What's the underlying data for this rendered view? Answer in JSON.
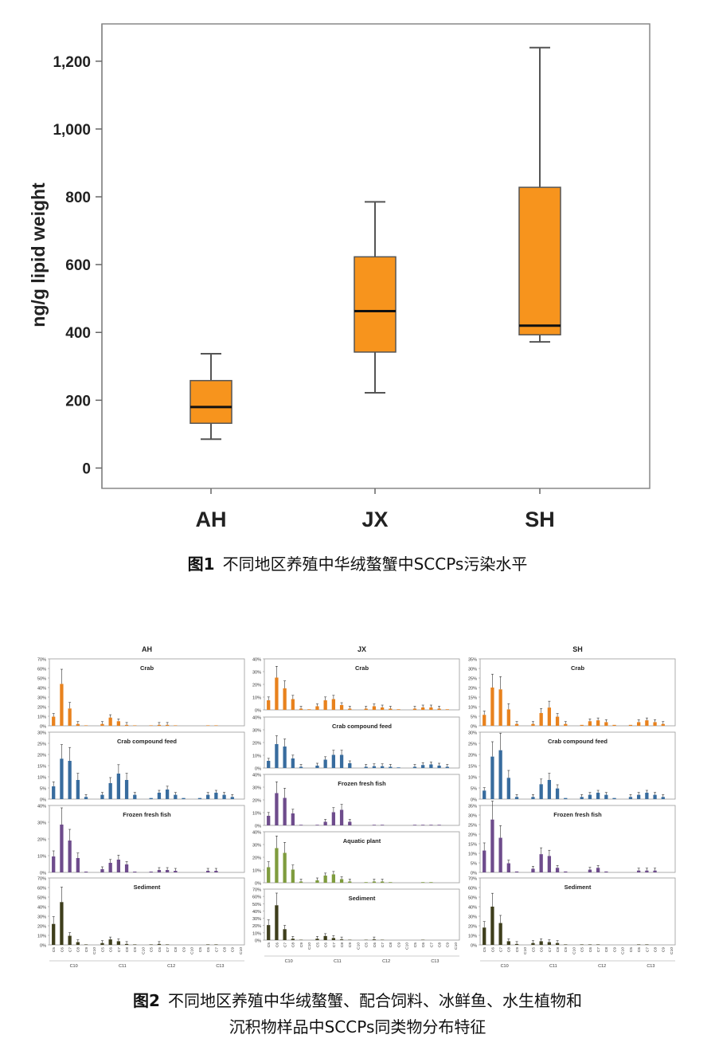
{
  "chart_data": [
    {
      "type": "box",
      "ylabel": "ng/g lipid weight",
      "ylim": [
        -60,
        1310
      ],
      "yticks": [
        0,
        200,
        400,
        600,
        800,
        1000,
        1200
      ],
      "ytick_labels": [
        "0",
        "200",
        "400",
        "600",
        "800",
        "1,000",
        "1,200"
      ],
      "categories": [
        "AH",
        "JX",
        "SH"
      ],
      "boxes": [
        {
          "category": "AH",
          "min": 85,
          "q1": 132,
          "median": 180,
          "q3": 258,
          "max": 337
        },
        {
          "category": "JX",
          "min": 222,
          "q1": 342,
          "median": 463,
          "q3": 623,
          "max": 785
        },
        {
          "category": "SH",
          "min": 372,
          "q1": 393,
          "median": 420,
          "q3": 828,
          "max": 1240
        }
      ],
      "box_color": "#f7941d"
    },
    {
      "type": "bar",
      "panel_titles": [
        "AH",
        "JX",
        "SH"
      ],
      "categories": [
        "C5",
        "C6",
        "C7",
        "C8",
        "C9",
        "C10",
        "C5",
        "C6",
        "C7",
        "C8",
        "C9",
        "C10",
        "C5",
        "C6",
        "C7",
        "C8",
        "C9",
        "C10",
        "C5",
        "C6",
        "C7",
        "C8",
        "C9",
        "C10"
      ],
      "groups": [
        "C10",
        "C11",
        "C12",
        "C13"
      ],
      "columns": [
        {
          "title": "AH",
          "rows": [
            {
              "name": "Crab",
              "color": "#e8821e",
              "ymax": 70,
              "yticks": [
                "70%",
                "60%",
                "50%",
                "40%",
                "30%",
                "20%",
                "10%",
                "0%"
              ],
              "values": [
                10,
                46,
                19,
                2,
                0.5,
                0,
                2,
                9,
                5,
                1,
                0.5,
                0,
                0.5,
                1,
                1,
                0.5,
                0,
                0,
                0,
                0.5,
                0.5,
                0,
                0,
                0
              ]
            },
            {
              "name": "Crab compound feed",
              "color": "#386c9e",
              "ymax": 30,
              "yticks": [
                "30%",
                "25%",
                "20%",
                "15%",
                "10%",
                "5%",
                "0%"
              ],
              "values": [
                6,
                19,
                18,
                9,
                1,
                0,
                2,
                7.5,
                12,
                9,
                2,
                0,
                0.5,
                3,
                4.5,
                2,
                0.5,
                0,
                0.5,
                2,
                3,
                2,
                1,
                0
              ]
            },
            {
              "name": "Frozen fresh fish",
              "color": "#6e4c8c",
              "ymax": 40,
              "yticks": [
                "40%",
                "30%",
                "20%",
                "10%",
                "0%"
              ],
              "values": [
                10,
                30,
                20,
                9,
                0.5,
                0,
                2,
                6,
                8,
                5,
                0.5,
                0,
                0.5,
                1.5,
                1.5,
                1,
                0,
                0,
                0,
                1,
                1,
                0,
                0,
                0
              ]
            },
            {
              "name": "Sediment",
              "color": "#3e3e1c",
              "ymax": 70,
              "yticks": [
                "70%",
                "60%",
                "50%",
                "40%",
                "30%",
                "20%",
                "10%",
                "0%"
              ],
              "values": [
                23,
                47,
                10,
                3,
                0.5,
                0,
                2,
                6,
                4,
                1,
                0.5,
                0,
                0.5,
                1,
                0.5,
                0,
                0,
                0,
                0,
                0.5,
                0.5,
                0,
                0,
                0
              ]
            }
          ]
        },
        {
          "title": "JX",
          "rows": [
            {
              "name": "Crab",
              "color": "#e8821e",
              "ymax": 40,
              "yticks": [
                "40%",
                "30%",
                "20%",
                "10%",
                "0%"
              ],
              "values": [
                8,
                27,
                18,
                9,
                1,
                0.5,
                3,
                8,
                9,
                4,
                1,
                0,
                1,
                3,
                2,
                1,
                0.5,
                0,
                1,
                2,
                2,
                1,
                0.5,
                0
              ]
            },
            {
              "name": "Crab compound feed",
              "color": "#386c9e",
              "ymax": 40,
              "yticks": [
                "40%",
                "30%",
                "20%",
                "10%",
                "0%"
              ],
              "values": [
                6,
                20,
                18,
                8,
                1,
                0,
                2,
                7,
                11,
                11,
                4,
                0,
                1,
                1.5,
                1.5,
                1,
                0.5,
                0,
                1,
                2.5,
                3,
                2,
                1,
                0
              ]
            },
            {
              "name": "Frozen fresh fish",
              "color": "#6e4c8c",
              "ymax": 40,
              "yticks": [
                "40%",
                "30%",
                "20%",
                "10%",
                "0%"
              ],
              "values": [
                8,
                27,
                23,
                10,
                0.5,
                0,
                0.5,
                3,
                11,
                13,
                3,
                0,
                0,
                0.5,
                0.5,
                0,
                0,
                0,
                0.5,
                0.5,
                0.5,
                0.5,
                0,
                0
              ]
            },
            {
              "name": "Aquatic plant",
              "color": "#7f9c3e",
              "ymax": 40,
              "yticks": [
                "40%",
                "30%",
                "20%",
                "10%",
                "0%"
              ],
              "values": [
                13,
                29,
                25,
                11,
                1,
                0,
                2,
                6,
                7,
                3,
                1,
                0,
                0.5,
                1,
                1,
                0.5,
                0,
                0,
                0,
                0.5,
                0.5,
                0,
                0,
                0
              ]
            },
            {
              "name": "Sediment",
              "color": "#3e3e1c",
              "ymax": 70,
              "yticks": [
                "70%",
                "60%",
                "50%",
                "40%",
                "30%",
                "20%",
                "10%",
                "0%"
              ],
              "values": [
                22,
                51,
                16,
                2,
                0.5,
                0,
                2,
                6,
                3,
                1,
                0.5,
                0,
                0.5,
                1,
                0.5,
                0,
                0,
                0,
                0,
                0.5,
                0,
                0,
                0,
                0
              ]
            }
          ]
        },
        {
          "title": "SH",
          "rows": [
            {
              "name": "Crab",
              "color": "#e8821e",
              "ymax": 35,
              "yticks": [
                "35%",
                "30%",
                "25%",
                "20%",
                "15%",
                "10%",
                "5%",
                "0%"
              ],
              "values": [
                6,
                21,
                20,
                9,
                1,
                0,
                1,
                7,
                10,
                5,
                1,
                0,
                0.5,
                2.5,
                3,
                2,
                0.5,
                0,
                0.5,
                2,
                3,
                2,
                1,
                0
              ]
            },
            {
              "name": "Crab compound feed",
              "color": "#386c9e",
              "ymax": 30,
              "yticks": [
                "30%",
                "25%",
                "20%",
                "15%",
                "10%",
                "5%",
                "0%"
              ],
              "values": [
                4,
                20,
                23,
                10,
                1,
                0,
                1,
                7,
                9,
                5,
                0.5,
                0,
                1,
                2,
                3,
                2,
                0.5,
                0,
                1,
                2,
                3,
                2,
                1,
                0
              ]
            },
            {
              "name": "Frozen fresh fish",
              "color": "#6e4c8c",
              "ymax": 35,
              "yticks": [
                "35%",
                "30%",
                "25%",
                "20%",
                "15%",
                "10%",
                "5%",
                "0%"
              ],
              "values": [
                12,
                29,
                19,
                5,
                0.5,
                0,
                2,
                10,
                9,
                2.5,
                0.5,
                0,
                0,
                1.5,
                2.5,
                0.5,
                0,
                0,
                0,
                1,
                1,
                1,
                0,
                0
              ]
            },
            {
              "name": "Sediment",
              "color": "#3e3e1c",
              "ymax": 70,
              "yticks": [
                "70%",
                "60%",
                "50%",
                "40%",
                "30%",
                "20%",
                "10%",
                "0%"
              ],
              "values": [
                19,
                42,
                24,
                4,
                1,
                0,
                2,
                4,
                3,
                2,
                0.5,
                0,
                0.5,
                0.5,
                0.5,
                0,
                0,
                0,
                0,
                0.5,
                0.5,
                0,
                0,
                0
              ]
            }
          ]
        }
      ]
    }
  ],
  "captions": {
    "fig1_label": "图1",
    "fig1_text": "不同地区养殖中华绒螯蟹中SCCPs污染水平",
    "fig2_label": "图2",
    "fig2_text_line1": "不同地区养殖中华绒螯蟹、配合饲料、冰鲜鱼、水生植物和",
    "fig2_text_line2": "沉积物样品中SCCPs同类物分布特征"
  }
}
